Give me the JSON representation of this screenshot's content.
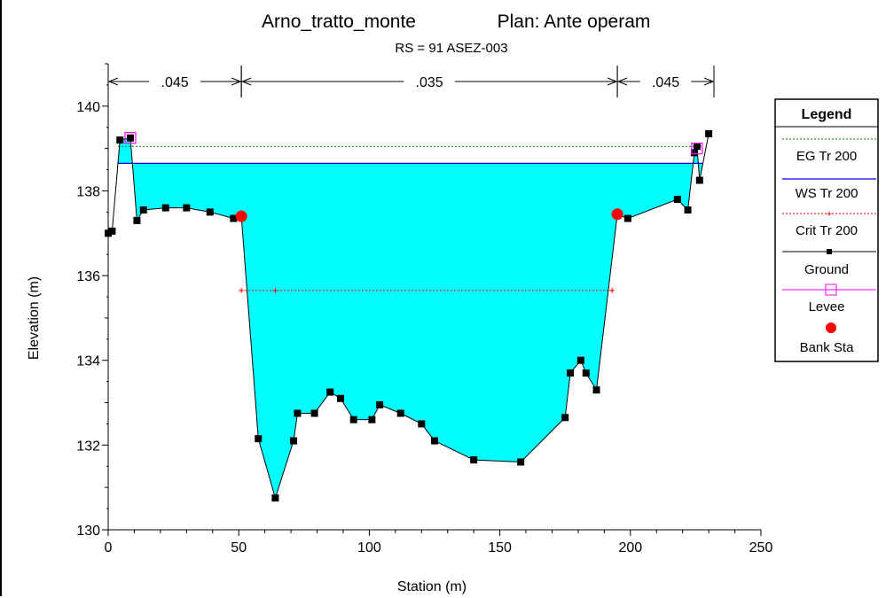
{
  "chart_data": {
    "type": "area",
    "title": "Arno_tratto_monte",
    "plan": "Plan: Ante operam",
    "subtitle": "RS = 91  ASEZ-003",
    "xlabel": "Station (m)",
    "ylabel": "Elevation (m)",
    "xlim": [
      0,
      250
    ],
    "ylim": [
      130,
      141
    ],
    "x_ticks": [
      "0",
      "50",
      "100",
      "150",
      "200",
      "250"
    ],
    "y_ticks": [
      "130",
      "132",
      "134",
      "136",
      "138",
      "140"
    ],
    "mannings": [
      {
        "label": ".045",
        "from": 0,
        "to": 51
      },
      {
        "label": ".035",
        "from": 51,
        "to": 195
      },
      {
        "label": ".045",
        "from": 195,
        "to": 232
      }
    ],
    "ground": [
      [
        0,
        137.0
      ],
      [
        1.5,
        137.05
      ],
      [
        4.5,
        139.2
      ],
      [
        8.5,
        139.25
      ],
      [
        11,
        137.3
      ],
      [
        13.5,
        137.55
      ],
      [
        22,
        137.6
      ],
      [
        30,
        137.6
      ],
      [
        39,
        137.5
      ],
      [
        48,
        137.35
      ],
      [
        51,
        137.4
      ],
      [
        57.5,
        132.15
      ],
      [
        64,
        130.75
      ],
      [
        71,
        132.1
      ],
      [
        72.5,
        132.75
      ],
      [
        79,
        132.75
      ],
      [
        85,
        133.25
      ],
      [
        89,
        133.1
      ],
      [
        94,
        132.6
      ],
      [
        101,
        132.6
      ],
      [
        104,
        132.95
      ],
      [
        112,
        132.75
      ],
      [
        120,
        132.5
      ],
      [
        125,
        132.1
      ],
      [
        140,
        131.65
      ],
      [
        158,
        131.6
      ],
      [
        175,
        132.65
      ],
      [
        177,
        133.7
      ],
      [
        181,
        134.0
      ],
      [
        183,
        133.7
      ],
      [
        187,
        133.3
      ],
      [
        195,
        137.45
      ],
      [
        199,
        137.35
      ],
      [
        218,
        137.8
      ],
      [
        222,
        137.55
      ],
      [
        224.5,
        138.9
      ],
      [
        225.5,
        139.05
      ],
      [
        226.5,
        138.25
      ],
      [
        230,
        139.35
      ]
    ],
    "ws_elevation": 138.65,
    "eg_elevation": 139.05,
    "crit_elevation": 135.65,
    "crit_from": 51,
    "crit_to": 193,
    "crit_marker_x": 64,
    "levees": [
      [
        8.5,
        139.25
      ],
      [
        225.5,
        139.0
      ]
    ],
    "bank_stations": [
      [
        51,
        137.4
      ],
      [
        195,
        137.45
      ]
    ],
    "legend": {
      "title": "Legend",
      "placement": "right",
      "entries": [
        "EG Tr 200",
        "WS Tr 200",
        "Crit Tr 200",
        "Ground",
        "Levee",
        "Bank Sta"
      ]
    },
    "colors": {
      "water": "#00ffff",
      "eg": "#008000",
      "ws": "#0000ff",
      "crit": "#ff0000",
      "ground": "#000000",
      "levee": "#ff00ff",
      "bank": "#ff0000"
    }
  }
}
